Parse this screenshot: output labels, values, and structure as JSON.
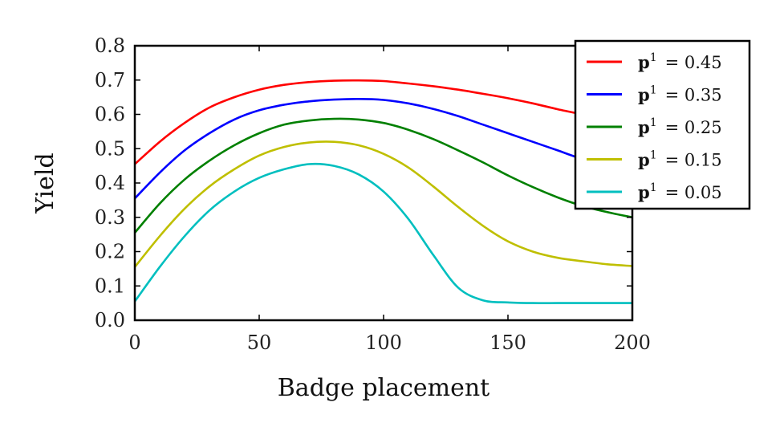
{
  "chart_data": {
    "type": "line",
    "xlabel": "Badge placement",
    "ylabel": "Yield",
    "xlim": [
      0,
      200
    ],
    "ylim": [
      0,
      0.8
    ],
    "xticks": [
      0,
      50,
      100,
      150,
      200
    ],
    "yticks": [
      "0.0",
      "0.1",
      "0.2",
      "0.3",
      "0.4",
      "0.5",
      "0.6",
      "0.7",
      "0.8"
    ],
    "grid": false,
    "legend_position": "top-right",
    "x": [
      0,
      10,
      20,
      30,
      40,
      50,
      60,
      70,
      80,
      90,
      100,
      110,
      120,
      130,
      140,
      150,
      160,
      170,
      180,
      190,
      200
    ],
    "series": [
      {
        "name_bold": "p",
        "name_sup": "1",
        "name_rest": "= 0.45",
        "color": "#ff0000",
        "values": [
          0.455,
          0.52,
          0.575,
          0.62,
          0.65,
          0.672,
          0.686,
          0.694,
          0.698,
          0.699,
          0.697,
          0.69,
          0.682,
          0.672,
          0.66,
          0.647,
          0.632,
          0.615,
          0.6,
          0.585,
          0.575
        ]
      },
      {
        "name_bold": "p",
        "name_sup": "1",
        "name_rest": "= 0.35",
        "color": "#0000ff",
        "values": [
          0.355,
          0.43,
          0.495,
          0.545,
          0.585,
          0.612,
          0.628,
          0.638,
          0.643,
          0.645,
          0.642,
          0.632,
          0.616,
          0.595,
          0.57,
          0.545,
          0.52,
          0.495,
          0.47,
          0.455,
          0.44
        ]
      },
      {
        "name_bold": "p",
        "name_sup": "1",
        "name_rest": "= 0.25",
        "color": "#008000",
        "values": [
          0.255,
          0.34,
          0.41,
          0.465,
          0.51,
          0.545,
          0.57,
          0.582,
          0.587,
          0.585,
          0.575,
          0.555,
          0.528,
          0.495,
          0.46,
          0.422,
          0.388,
          0.358,
          0.333,
          0.315,
          0.3
        ]
      },
      {
        "name_bold": "p",
        "name_sup": "1",
        "name_rest": "= 0.15",
        "color": "#bfbf00",
        "values": [
          0.155,
          0.245,
          0.325,
          0.39,
          0.44,
          0.48,
          0.505,
          0.518,
          0.52,
          0.51,
          0.485,
          0.445,
          0.39,
          0.33,
          0.275,
          0.23,
          0.2,
          0.182,
          0.172,
          0.163,
          0.158
        ]
      },
      {
        "name_bold": "p",
        "name_sup": "1",
        "name_rest": "= 0.05",
        "color": "#00bfbf",
        "values": [
          0.055,
          0.155,
          0.245,
          0.32,
          0.375,
          0.415,
          0.44,
          0.455,
          0.45,
          0.425,
          0.375,
          0.295,
          0.19,
          0.095,
          0.058,
          0.052,
          0.05,
          0.05,
          0.05,
          0.05,
          0.05
        ]
      }
    ]
  }
}
